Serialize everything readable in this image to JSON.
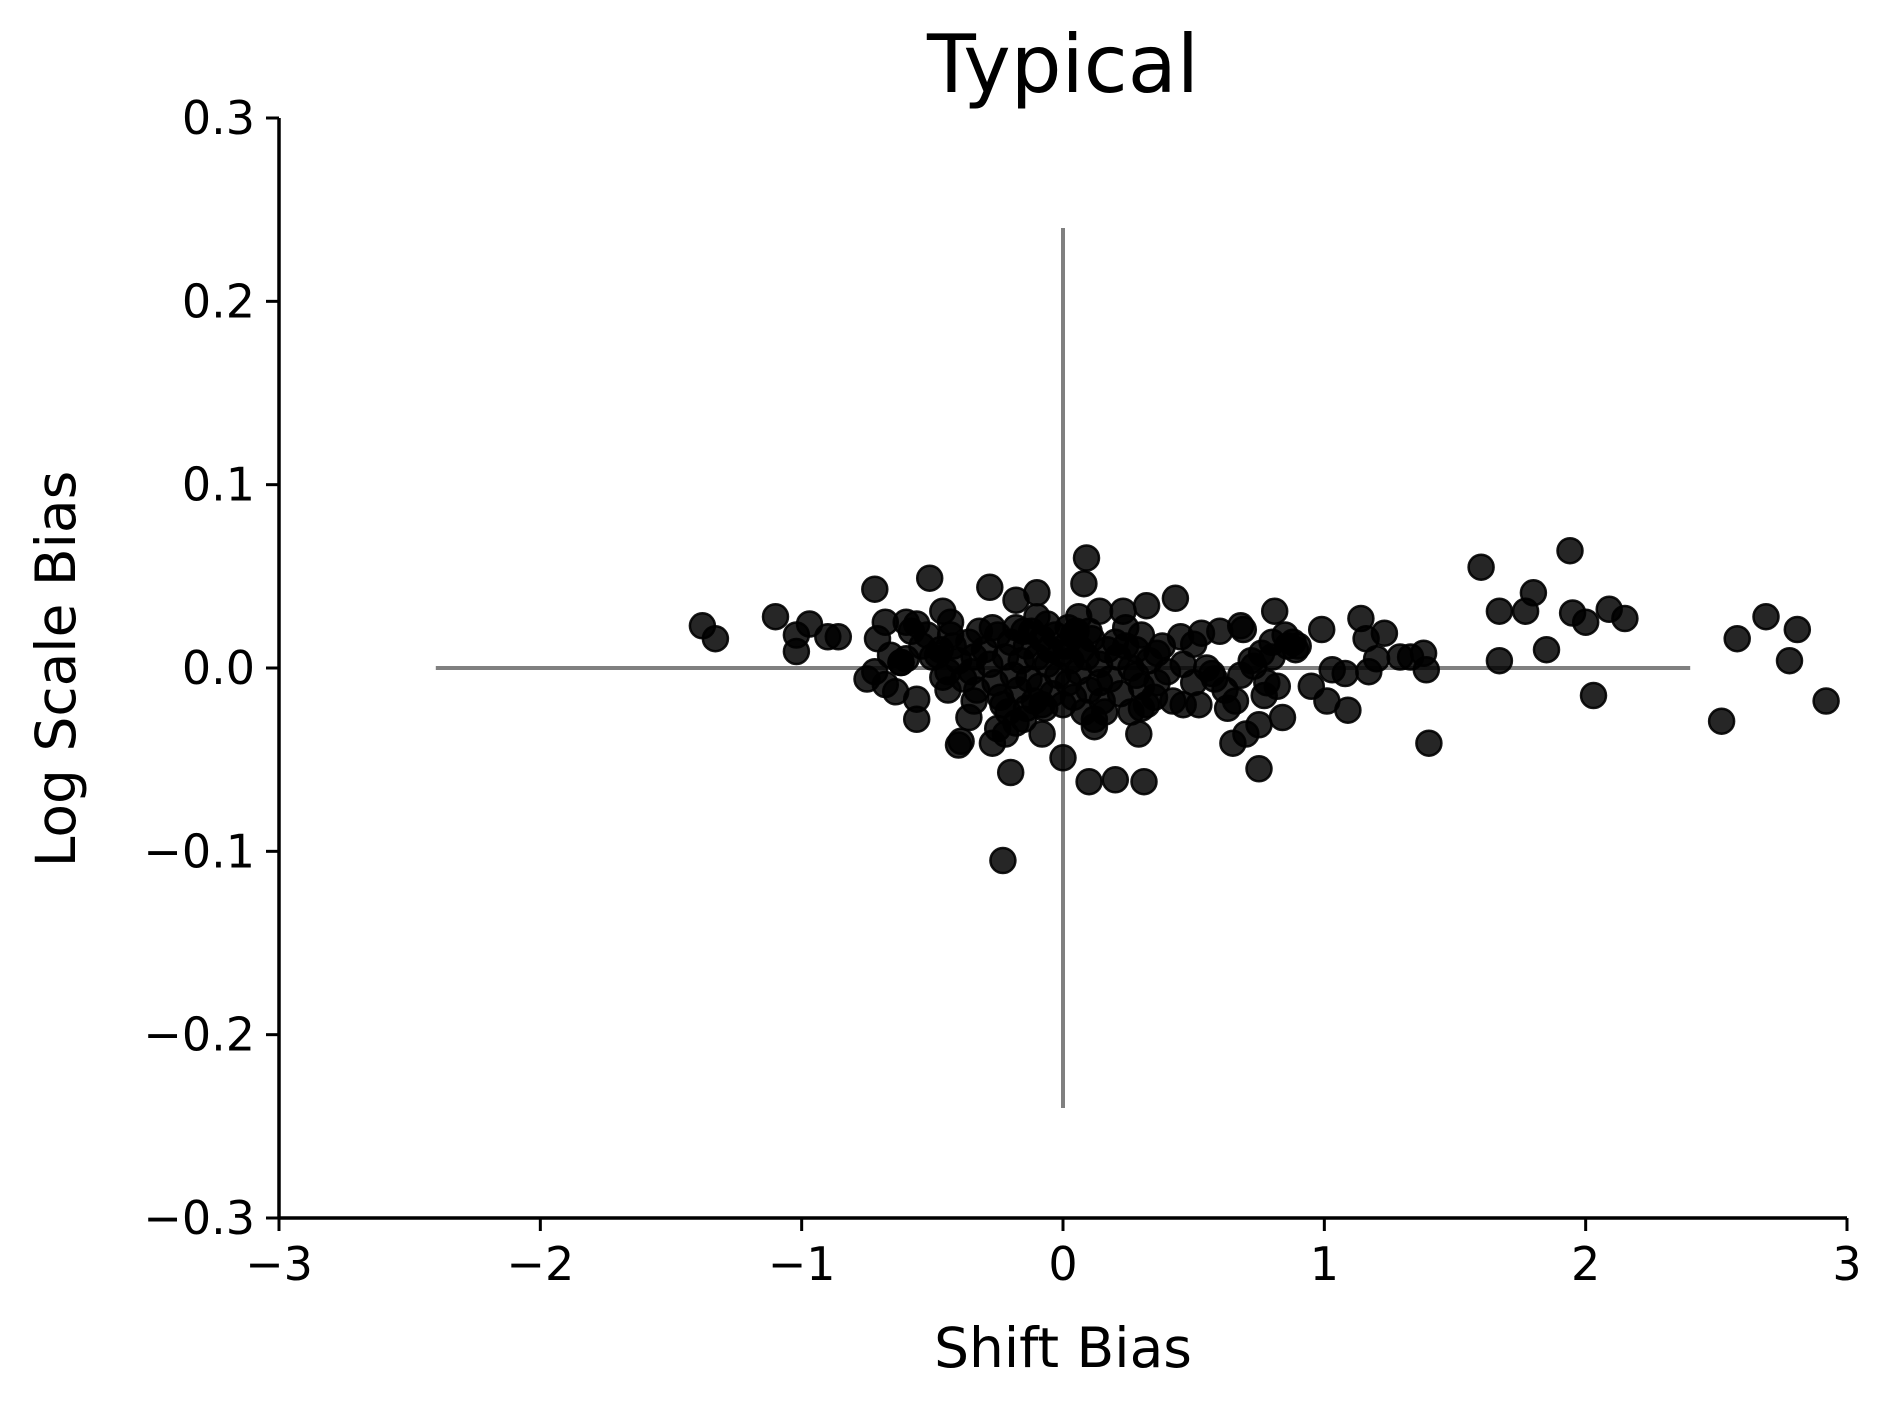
{
  "chart_data": {
    "type": "scatter",
    "title": "Typical",
    "xlabel": "Shift Bias",
    "ylabel": "Log Scale Bias",
    "xlim": [
      -3,
      3
    ],
    "ylim": [
      -0.3,
      0.3
    ],
    "xticks": [
      -3,
      -2,
      -1,
      0,
      1,
      2,
      3
    ],
    "xtick_labels": [
      "−3",
      "−2",
      "−1",
      "0",
      "1",
      "2",
      "3"
    ],
    "yticks": [
      0.3,
      0.2,
      0.1,
      0.0,
      -0.1,
      -0.2,
      -0.3
    ],
    "ytick_labels": [
      "0.3",
      "0.2",
      "0.1",
      "0.0",
      "−0.1",
      "−0.2",
      "−0.3"
    ],
    "grid": false,
    "legend": "none",
    "marker_color": "#000000",
    "marker_alpha": 0.85,
    "reference_line_color": "#808080",
    "reference_lines": {
      "horizontal": {
        "y": 0,
        "x_from": -2.4,
        "x_to": 2.4
      },
      "vertical": {
        "x": 0,
        "y_from": -0.24,
        "y_to": 0.24
      }
    },
    "points": [
      [
        -1.38,
        0.023
      ],
      [
        -1.33,
        0.016
      ],
      [
        -1.1,
        0.028
      ],
      [
        -1.02,
        0.018
      ],
      [
        -1.02,
        0.009
      ],
      [
        -0.97,
        0.024
      ],
      [
        -0.9,
        0.017
      ],
      [
        -0.86,
        0.017
      ],
      [
        -0.72,
        0.043
      ],
      [
        -0.71,
        0.016
      ],
      [
        -0.68,
        0.025
      ],
      [
        -0.66,
        0.007
      ],
      [
        -0.6,
        0.025
      ],
      [
        -0.56,
        0.024
      ],
      [
        -0.51,
        0.049
      ],
      [
        -0.46,
        0.031
      ],
      [
        -0.43,
        0.025
      ],
      [
        -0.43,
        0.018
      ],
      [
        -0.75,
        -0.006
      ],
      [
        -0.72,
        -0.002
      ],
      [
        -0.68,
        -0.009
      ],
      [
        -0.64,
        -0.013
      ],
      [
        -0.62,
        0.003
      ],
      [
        -0.6,
        0.005
      ],
      [
        -0.56,
        -0.017
      ],
      [
        -0.56,
        -0.028
      ],
      [
        -0.52,
        0.018
      ],
      [
        -0.48,
        0.007
      ],
      [
        -0.46,
        -0.005
      ],
      [
        -0.44,
        -0.012
      ],
      [
        -0.4,
        -0.042
      ],
      [
        -0.39,
        -0.04
      ],
      [
        -0.36,
        -0.027
      ],
      [
        -0.34,
        -0.018
      ],
      [
        -0.28,
        0.044
      ],
      [
        -0.27,
        -0.041
      ],
      [
        -0.25,
        -0.033
      ],
      [
        -0.23,
        -0.105
      ],
      [
        -0.2,
        -0.057
      ],
      [
        -0.18,
        0.037
      ],
      [
        -0.1,
        0.041
      ],
      [
        -0.08,
        -0.036
      ],
      [
        0.0,
        -0.049
      ],
      [
        0.08,
        0.046
      ],
      [
        0.09,
        0.06
      ],
      [
        0.1,
        -0.062
      ],
      [
        0.14,
        0.031
      ],
      [
        0.2,
        -0.061
      ],
      [
        0.23,
        0.031
      ],
      [
        0.3,
        0.018
      ],
      [
        0.32,
        0.034
      ],
      [
        0.31,
        -0.062
      ],
      [
        0.29,
        -0.036
      ],
      [
        0.3,
        -0.022
      ],
      [
        0.36,
        -0.008
      ],
      [
        0.43,
        0.038
      ],
      [
        0.45,
        0.017
      ],
      [
        0.46,
        -0.02
      ],
      [
        0.5,
        0.013
      ],
      [
        0.52,
        -0.02
      ],
      [
        0.53,
        0.019
      ],
      [
        0.57,
        -0.003
      ],
      [
        0.6,
        0.02
      ],
      [
        0.63,
        -0.022
      ],
      [
        0.65,
        -0.041
      ],
      [
        0.68,
        0.023
      ],
      [
        0.69,
        0.021
      ],
      [
        0.7,
        -0.036
      ],
      [
        0.73,
        0.001
      ],
      [
        0.75,
        -0.031
      ],
      [
        0.75,
        -0.055
      ],
      [
        0.77,
        -0.015
      ],
      [
        0.8,
        0.006
      ],
      [
        0.81,
        0.031
      ],
      [
        0.82,
        -0.01
      ],
      [
        0.84,
        -0.027
      ],
      [
        0.85,
        0.018
      ],
      [
        0.89,
        0.01
      ],
      [
        0.95,
        -0.01
      ],
      [
        0.99,
        0.021
      ],
      [
        1.01,
        -0.018
      ],
      [
        1.03,
        -0.001
      ],
      [
        1.08,
        -0.003
      ],
      [
        1.09,
        -0.023
      ],
      [
        1.14,
        0.027
      ],
      [
        1.16,
        0.016
      ],
      [
        1.17,
        -0.002
      ],
      [
        1.2,
        0.005
      ],
      [
        1.23,
        0.019
      ],
      [
        1.29,
        0.006
      ],
      [
        1.33,
        0.006
      ],
      [
        1.38,
        0.008
      ],
      [
        1.39,
        -0.001
      ],
      [
        1.4,
        -0.041
      ],
      [
        1.6,
        0.055
      ],
      [
        1.67,
        0.031
      ],
      [
        1.67,
        0.004
      ],
      [
        1.77,
        0.031
      ],
      [
        1.8,
        0.041
      ],
      [
        1.85,
        0.01
      ],
      [
        1.94,
        0.064
      ],
      [
        1.95,
        0.03
      ],
      [
        2.0,
        0.025
      ],
      [
        2.03,
        -0.015
      ],
      [
        2.09,
        0.032
      ],
      [
        2.15,
        0.027
      ],
      [
        2.52,
        -0.029
      ],
      [
        2.58,
        0.016
      ],
      [
        2.69,
        0.028
      ],
      [
        2.78,
        0.004
      ],
      [
        2.81,
        0.021
      ],
      [
        2.92,
        -0.018
      ],
      [
        -0.3,
        0.01
      ],
      [
        -0.28,
        0.002
      ],
      [
        -0.26,
        -0.008
      ],
      [
        -0.25,
        0.018
      ],
      [
        -0.24,
        -0.016
      ],
      [
        -0.22,
        0.006
      ],
      [
        -0.21,
        -0.024
      ],
      [
        -0.2,
        0.014
      ],
      [
        -0.19,
        -0.004
      ],
      [
        -0.18,
        0.022
      ],
      [
        -0.17,
        -0.012
      ],
      [
        -0.16,
        0.004
      ],
      [
        -0.15,
        -0.028
      ],
      [
        -0.14,
        0.012
      ],
      [
        -0.13,
        -0.006
      ],
      [
        -0.12,
        0.02
      ],
      [
        -0.11,
        -0.018
      ],
      [
        -0.1,
        0.006
      ],
      [
        -0.09,
        -0.01
      ],
      [
        -0.08,
        0.016
      ],
      [
        -0.07,
        -0.022
      ],
      [
        -0.06,
        0.002
      ],
      [
        -0.05,
        0.01
      ],
      [
        -0.04,
        -0.014
      ],
      [
        -0.03,
        0.018
      ],
      [
        -0.02,
        -0.004
      ],
      [
        -0.01,
        0.008
      ],
      [
        0.0,
        -0.02
      ],
      [
        0.01,
        0.012
      ],
      [
        0.02,
        -0.008
      ],
      [
        0.03,
        0.004
      ],
      [
        0.04,
        -0.016
      ],
      [
        0.05,
        0.02
      ],
      [
        0.06,
        -0.002
      ],
      [
        0.07,
        0.01
      ],
      [
        0.08,
        -0.024
      ],
      [
        0.09,
        0.006
      ],
      [
        0.1,
        -0.012
      ],
      [
        0.11,
        0.016
      ],
      [
        0.12,
        -0.028
      ],
      [
        0.14,
        0.002
      ],
      [
        0.15,
        -0.018
      ],
      [
        0.17,
        0.01
      ],
      [
        0.18,
        -0.006
      ],
      [
        0.2,
        0.014
      ],
      [
        0.22,
        -0.014
      ],
      [
        0.24,
        0.022
      ],
      [
        0.26,
        0.0
      ],
      [
        0.28,
        0.01
      ],
      [
        0.3,
        -0.01
      ],
      [
        0.33,
        0.004
      ],
      [
        0.35,
        -0.016
      ],
      [
        0.38,
        0.012
      ],
      [
        0.4,
        -0.002
      ],
      [
        0.42,
        -0.018
      ],
      [
        -0.36,
        0.014
      ],
      [
        -0.35,
        -0.002
      ],
      [
        -0.34,
        0.006
      ],
      [
        -0.33,
        -0.012
      ],
      [
        -0.32,
        0.02
      ],
      [
        -0.38,
        -0.006
      ],
      [
        -0.4,
        0.004
      ],
      [
        -0.42,
        0.012
      ],
      [
        -0.44,
        -0.002
      ],
      [
        -0.47,
        0.01
      ],
      [
        -0.5,
        0.006
      ],
      [
        -0.22,
        -0.036
      ],
      [
        -0.18,
        -0.03
      ],
      [
        -0.14,
        -0.022
      ],
      [
        -0.1,
        0.028
      ],
      [
        -0.06,
        0.024
      ],
      [
        0.02,
        0.022
      ],
      [
        0.06,
        0.028
      ],
      [
        0.12,
        -0.032
      ],
      [
        0.16,
        -0.024
      ],
      [
        0.24,
        0.012
      ],
      [
        0.26,
        -0.024
      ],
      [
        0.32,
        -0.02
      ],
      [
        0.36,
        0.008
      ],
      [
        0.46,
        0.002
      ],
      [
        0.5,
        -0.008
      ],
      [
        0.55,
        0.0
      ],
      [
        0.58,
        -0.006
      ],
      [
        0.62,
        -0.012
      ],
      [
        0.66,
        -0.018
      ],
      [
        0.68,
        -0.004
      ],
      [
        0.72,
        0.004
      ],
      [
        0.76,
        0.008
      ],
      [
        0.78,
        -0.008
      ],
      [
        0.8,
        0.014
      ],
      [
        0.86,
        0.012
      ],
      [
        0.88,
        0.014
      ],
      [
        0.9,
        0.012
      ],
      [
        -0.62,
        0.003
      ],
      [
        -0.58,
        0.02
      ],
      [
        -0.54,
        0.012
      ],
      [
        -0.27,
        0.022
      ],
      [
        -0.23,
        -0.02
      ],
      [
        -0.15,
        0.02
      ],
      [
        -0.08,
        -0.02
      ],
      [
        0.04,
        0.018
      ],
      [
        0.1,
        0.02
      ],
      [
        0.14,
        -0.008
      ],
      [
        0.21,
        0.006
      ],
      [
        0.28,
        -0.004
      ]
    ]
  }
}
